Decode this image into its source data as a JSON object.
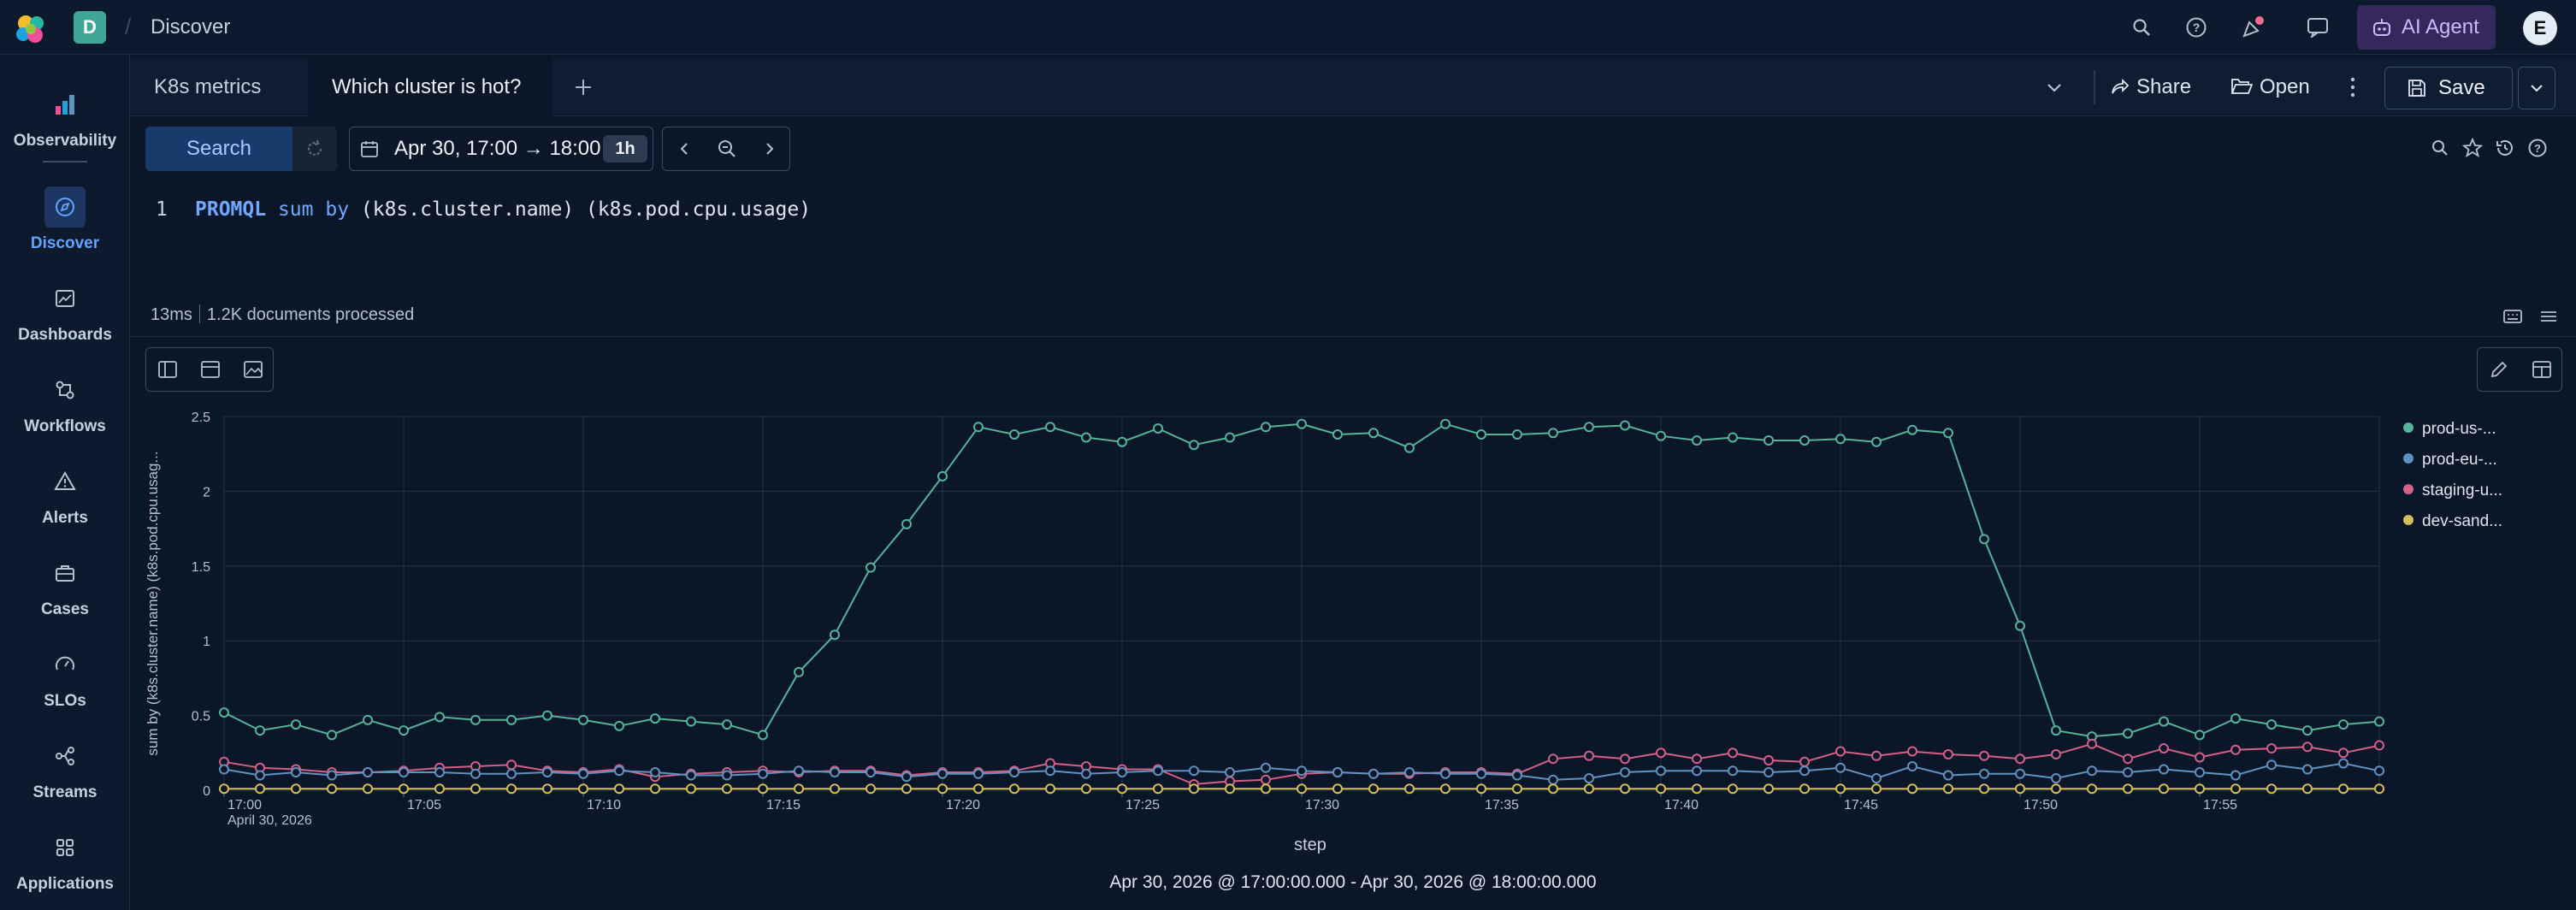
{
  "topbar": {
    "space_initial": "D",
    "breadcrumb": "Discover",
    "ai_agent_label": "AI Agent",
    "user_initial": "E",
    "icons": [
      "search-icon",
      "help-icon",
      "news-icon",
      "chat-icon"
    ]
  },
  "sidenav": {
    "items": [
      {
        "label": "Observability",
        "icon": "observability-icon"
      },
      {
        "label": "Discover",
        "icon": "discover-icon",
        "active": true
      },
      {
        "label": "Dashboards",
        "icon": "dashboards-icon"
      },
      {
        "label": "Workflows",
        "icon": "workflows-icon"
      },
      {
        "label": "Alerts",
        "icon": "alerts-icon"
      },
      {
        "label": "Cases",
        "icon": "cases-icon"
      },
      {
        "label": "SLOs",
        "icon": "slos-icon"
      },
      {
        "label": "Streams",
        "icon": "streams-icon"
      },
      {
        "label": "Applications",
        "icon": "applications-icon"
      }
    ]
  },
  "tabs": {
    "items": [
      {
        "label": "K8s metrics"
      },
      {
        "label": "Which cluster is hot?",
        "active": true
      }
    ],
    "share_label": "Share",
    "open_label": "Open",
    "save_label": "Save"
  },
  "searchbar": {
    "search_label": "Search",
    "date_range": "Apr 30, 17:00 → 18:00",
    "duration": "1h"
  },
  "query": {
    "line_number": "1",
    "keyword": "PROMQL",
    "func": "sum by",
    "rest": " (k8s.cluster.name) (k8s.pod.cpu.usage)"
  },
  "status": {
    "time": "13ms",
    "documents": "1.2K documents processed"
  },
  "chart_data": {
    "type": "line",
    "ylabel": "sum by (k8s.cluster.name) (k8s.pod.cpu.usag...",
    "xlabel": "step",
    "ylim": [
      0,
      2.5
    ],
    "yticks": [
      "0",
      "0.5",
      "1",
      "1.5",
      "2",
      "2.5"
    ],
    "xticks": [
      "17:00",
      "17:05",
      "17:10",
      "17:15",
      "17:20",
      "17:25",
      "17:30",
      "17:35",
      "17:40",
      "17:45",
      "17:50",
      "17:55"
    ],
    "x_date_label": "April 30, 2026",
    "x_start": "17:00",
    "x_end": "18:00",
    "x_interval_minutes": 1,
    "grid": true,
    "legend_position": "right",
    "series": [
      {
        "name": "prod-us-...",
        "color": "#54b399",
        "values": [
          0.52,
          0.4,
          0.44,
          0.37,
          0.47,
          0.4,
          0.49,
          0.47,
          0.47,
          0.5,
          0.47,
          0.43,
          0.48,
          0.46,
          0.44,
          0.37,
          0.79,
          1.04,
          1.49,
          1.78,
          2.1,
          2.43,
          2.38,
          2.43,
          2.36,
          2.33,
          2.42,
          2.31,
          2.36,
          2.43,
          2.45,
          2.38,
          2.39,
          2.29,
          2.45,
          2.38,
          2.38,
          2.39,
          2.43,
          2.44,
          2.37,
          2.34,
          2.36,
          2.34,
          2.34,
          2.35,
          2.33,
          2.41,
          2.39,
          1.68,
          1.1,
          0.4,
          0.36,
          0.38,
          0.46,
          0.37,
          0.48,
          0.44,
          0.4,
          0.44,
          0.46
        ]
      },
      {
        "name": "prod-eu-...",
        "color": "#6092c0",
        "values": [
          0.14,
          0.1,
          0.12,
          0.1,
          0.12,
          0.12,
          0.12,
          0.11,
          0.11,
          0.12,
          0.11,
          0.13,
          0.12,
          0.1,
          0.1,
          0.11,
          0.13,
          0.12,
          0.12,
          0.09,
          0.11,
          0.11,
          0.12,
          0.13,
          0.11,
          0.12,
          0.13,
          0.13,
          0.12,
          0.15,
          0.13,
          0.12,
          0.11,
          0.12,
          0.11,
          0.11,
          0.1,
          0.07,
          0.08,
          0.12,
          0.13,
          0.13,
          0.13,
          0.12,
          0.13,
          0.15,
          0.08,
          0.16,
          0.1,
          0.11,
          0.11,
          0.08,
          0.13,
          0.12,
          0.14,
          0.12,
          0.1,
          0.17,
          0.14,
          0.18,
          0.13
        ]
      },
      {
        "name": "staging-u...",
        "color": "#d36086",
        "values": [
          0.19,
          0.15,
          0.14,
          0.12,
          0.12,
          0.13,
          0.15,
          0.16,
          0.17,
          0.13,
          0.12,
          0.14,
          0.09,
          0.11,
          0.12,
          0.13,
          0.12,
          0.13,
          0.13,
          0.1,
          0.12,
          0.12,
          0.13,
          0.18,
          0.16,
          0.14,
          0.14,
          0.04,
          0.06,
          0.07,
          0.11,
          0.12,
          0.11,
          0.11,
          0.12,
          0.12,
          0.11,
          0.21,
          0.23,
          0.21,
          0.25,
          0.21,
          0.25,
          0.2,
          0.19,
          0.26,
          0.23,
          0.26,
          0.24,
          0.23,
          0.21,
          0.24,
          0.31,
          0.21,
          0.28,
          0.22,
          0.27,
          0.28,
          0.29,
          0.25,
          0.3
        ]
      },
      {
        "name": "dev-sand...",
        "color": "#d6bf57",
        "values": [
          0.01,
          0.01,
          0.01,
          0.01,
          0.01,
          0.01,
          0.01,
          0.01,
          0.01,
          0.01,
          0.01,
          0.01,
          0.01,
          0.01,
          0.01,
          0.01,
          0.01,
          0.01,
          0.01,
          0.01,
          0.01,
          0.01,
          0.01,
          0.01,
          0.01,
          0.01,
          0.01,
          0.01,
          0.01,
          0.01,
          0.01,
          0.01,
          0.01,
          0.01,
          0.01,
          0.01,
          0.01,
          0.01,
          0.01,
          0.01,
          0.01,
          0.01,
          0.01,
          0.01,
          0.01,
          0.01,
          0.01,
          0.01,
          0.01,
          0.01,
          0.01,
          0.01,
          0.01,
          0.01,
          0.01,
          0.01,
          0.01,
          0.01,
          0.01,
          0.01,
          0.01
        ]
      }
    ]
  },
  "time_range_footer": "Apr 30, 2026 @ 17:00:00.000 - Apr 30, 2026 @ 18:00:00.000"
}
